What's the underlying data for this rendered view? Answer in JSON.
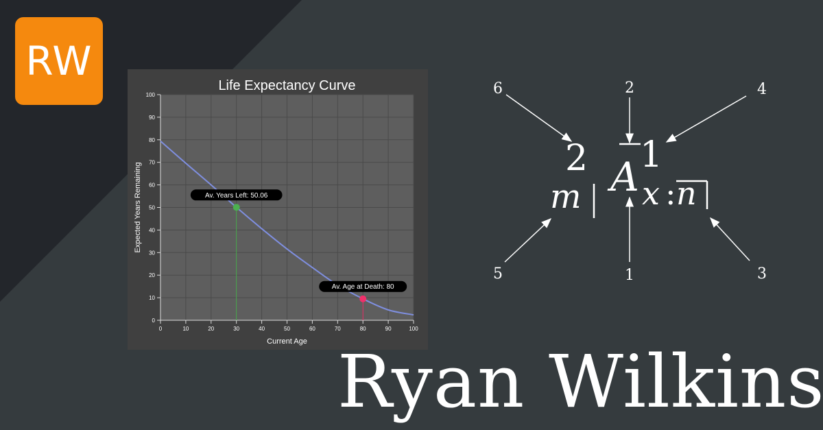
{
  "logo": {
    "text": "RW",
    "color": "#f5890e"
  },
  "name": "Ryan Wilkins",
  "chart_data": {
    "type": "line",
    "title": "Life Expectancy Curve",
    "xlabel": "Current Age",
    "ylabel": "Expected Years Remaining",
    "xlim": [
      0,
      100
    ],
    "ylim": [
      0,
      100
    ],
    "x_ticks": [
      0,
      10,
      20,
      30,
      40,
      50,
      60,
      70,
      80,
      90,
      100
    ],
    "y_ticks": [
      0,
      10,
      20,
      30,
      40,
      50,
      60,
      70,
      80,
      90,
      100
    ],
    "grid": true,
    "line_color": "#7f8fe0",
    "series": [
      {
        "x": [
          0,
          10,
          20,
          30,
          40,
          50,
          60,
          70,
          80,
          90,
          100
        ],
        "y": [
          79.4,
          69.6,
          60.0,
          50.06,
          40.6,
          31.6,
          23.4,
          15.6,
          9.5,
          4.6,
          2.4
        ]
      }
    ],
    "annotations": [
      {
        "label": "Av. Years Left: 50.06",
        "x": 30,
        "y": 50.06,
        "color": "#4caf50"
      },
      {
        "label": "Av. Age at Death: 80",
        "x": 80,
        "y": 9.5,
        "color": "#f0306a"
      }
    ]
  },
  "formula": {
    "main_symbol": "A",
    "left_superscript": "2",
    "right_superscript": "1",
    "left_subscript": "m",
    "right_subscript_x": "x",
    "right_subscript_colon": ":",
    "right_subscript_n": "n",
    "callout_labels": [
      "1",
      "2",
      "3",
      "4",
      "5",
      "6"
    ]
  }
}
